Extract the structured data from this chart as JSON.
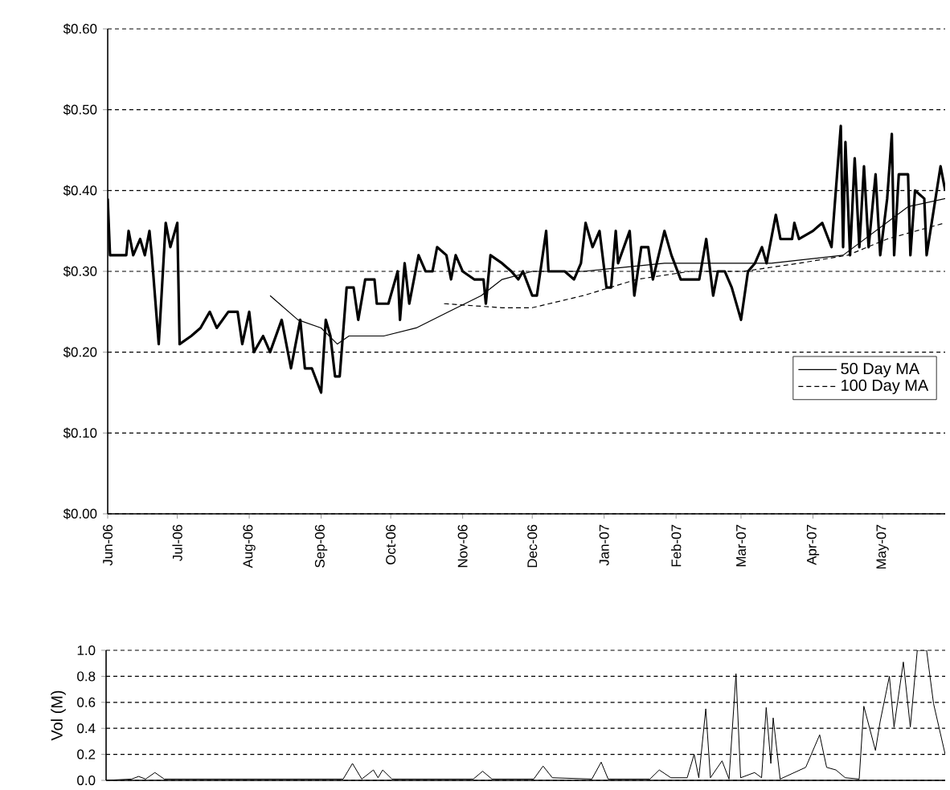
{
  "chart_data": [
    {
      "type": "line",
      "xlim": [
        "2006-06-01",
        "2007-05-28"
      ],
      "ylim": [
        0,
        0.6
      ],
      "yticks": [
        {
          "value": 0,
          "label": "$0.00"
        },
        {
          "value": 0.1,
          "label": "$0.10"
        },
        {
          "value": 0.2,
          "label": "$0.20"
        },
        {
          "value": 0.3,
          "label": "$0.30"
        },
        {
          "value": 0.4,
          "label": "$0.40"
        },
        {
          "value": 0.5,
          "label": "$0.50"
        },
        {
          "value": 0.6,
          "label": "$0.60"
        }
      ],
      "xticks": [
        {
          "value": "2006-06-01",
          "label": "Jun-06"
        },
        {
          "value": "2006-07-01",
          "label": "Jul-06"
        },
        {
          "value": "2006-08-01",
          "label": "Aug-06"
        },
        {
          "value": "2006-09-01",
          "label": "Sep-06"
        },
        {
          "value": "2006-10-01",
          "label": "Oct-06"
        },
        {
          "value": "2006-11-01",
          "label": "Nov-06"
        },
        {
          "value": "2006-12-01",
          "label": "Dec-06"
        },
        {
          "value": "2007-01-01",
          "label": "Jan-07"
        },
        {
          "value": "2007-02-01",
          "label": "Feb-07"
        },
        {
          "value": "2007-03-01",
          "label": "Mar-07"
        },
        {
          "value": "2007-04-01",
          "label": "Apr-07"
        },
        {
          "value": "2007-05-01",
          "label": "May-07"
        }
      ],
      "grid": "y",
      "legend": "right",
      "marker": "none",
      "series": [
        {
          "color": "#000000",
          "line_style": "solid",
          "x": [
            "2006-06-01",
            "2006-06-02",
            "2006-06-09",
            "2006-06-10",
            "2006-06-12",
            "2006-06-15",
            "2006-06-17",
            "2006-06-19",
            "2006-06-20",
            "2006-06-23",
            "2006-06-26",
            "2006-06-28",
            "2006-07-01",
            "2006-07-02",
            "2006-07-07",
            "2006-07-11",
            "2006-07-15",
            "2006-07-18",
            "2006-07-23",
            "2006-07-27",
            "2006-07-29",
            "2006-08-01",
            "2006-08-03",
            "2006-08-07",
            "2006-08-10",
            "2006-08-15",
            "2006-08-19",
            "2006-08-23",
            "2006-08-25",
            "2006-08-28",
            "2006-09-01",
            "2006-09-03",
            "2006-09-05",
            "2006-09-07",
            "2006-09-09",
            "2006-09-12",
            "2006-09-15",
            "2006-09-17",
            "2006-09-20",
            "2006-09-24",
            "2006-09-25",
            "2006-09-30",
            "2006-10-04",
            "2006-10-05",
            "2006-10-07",
            "2006-10-09",
            "2006-10-13",
            "2006-10-16",
            "2006-10-19",
            "2006-10-21",
            "2006-10-25",
            "2006-10-27",
            "2006-10-29",
            "2006-11-01",
            "2006-11-06",
            "2006-11-10",
            "2006-11-11",
            "2006-11-13",
            "2006-11-18",
            "2006-11-22",
            "2006-11-25",
            "2006-11-27",
            "2006-12-01",
            "2006-12-03",
            "2006-12-07",
            "2006-12-08",
            "2006-12-15",
            "2006-12-19",
            "2006-12-22",
            "2006-12-24",
            "2006-12-27",
            "2006-12-30",
            "2007-01-02",
            "2007-01-04",
            "2007-01-06",
            "2007-01-07",
            "2007-01-12",
            "2007-01-14",
            "2007-01-17",
            "2007-01-20",
            "2007-01-22",
            "2007-01-27",
            "2007-01-30",
            "2007-02-03",
            "2007-02-11",
            "2007-02-14",
            "2007-02-17",
            "2007-02-19",
            "2007-02-22",
            "2007-02-25",
            "2007-03-01",
            "2007-03-04",
            "2007-03-07",
            "2007-03-10",
            "2007-03-12",
            "2007-03-16",
            "2007-03-18",
            "2007-03-23",
            "2007-03-24",
            "2007-03-26",
            "2007-04-01",
            "2007-04-05",
            "2007-04-09",
            "2007-04-13",
            "2007-04-14",
            "2007-04-15",
            "2007-04-17",
            "2007-04-19",
            "2007-04-21",
            "2007-04-23",
            "2007-04-25",
            "2007-04-28",
            "2007-04-30",
            "2007-05-03",
            "2007-05-05",
            "2007-05-06",
            "2007-05-08",
            "2007-05-12",
            "2007-05-13",
            "2007-05-15",
            "2007-05-19",
            "2007-05-20",
            "2007-05-26",
            "2007-05-28"
          ],
          "values": [
            0.39,
            0.32,
            0.32,
            0.35,
            0.32,
            0.34,
            0.32,
            0.35,
            0.32,
            0.21,
            0.36,
            0.33,
            0.36,
            0.21,
            0.22,
            0.23,
            0.25,
            0.23,
            0.25,
            0.25,
            0.21,
            0.25,
            0.2,
            0.22,
            0.2,
            0.24,
            0.18,
            0.24,
            0.18,
            0.18,
            0.15,
            0.24,
            0.22,
            0.17,
            0.17,
            0.28,
            0.28,
            0.24,
            0.29,
            0.29,
            0.26,
            0.26,
            0.3,
            0.24,
            0.31,
            0.26,
            0.32,
            0.3,
            0.3,
            0.33,
            0.32,
            0.29,
            0.32,
            0.3,
            0.29,
            0.29,
            0.26,
            0.32,
            0.31,
            0.3,
            0.29,
            0.3,
            0.27,
            0.27,
            0.35,
            0.3,
            0.3,
            0.29,
            0.31,
            0.36,
            0.33,
            0.35,
            0.28,
            0.28,
            0.35,
            0.31,
            0.35,
            0.27,
            0.33,
            0.33,
            0.29,
            0.35,
            0.32,
            0.29,
            0.29,
            0.34,
            0.27,
            0.3,
            0.3,
            0.28,
            0.24,
            0.3,
            0.31,
            0.33,
            0.31,
            0.37,
            0.34,
            0.34,
            0.36,
            0.34,
            0.35,
            0.36,
            0.33,
            0.48,
            0.33,
            0.46,
            0.32,
            0.44,
            0.33,
            0.43,
            0.33,
            0.42,
            0.32,
            0.39,
            0.47,
            0.32,
            0.42,
            0.42,
            0.32,
            0.4,
            0.39,
            0.32,
            0.43,
            0.4
          ]
        },
        {
          "name": "50 Day MA",
          "color": "#000000",
          "line_style": "solid",
          "x": [
            "2006-08-10",
            "2006-08-22",
            "2006-09-01",
            "2006-09-08",
            "2006-09-13",
            "2006-09-28",
            "2006-10-12",
            "2006-10-26",
            "2006-11-09",
            "2006-11-18",
            "2006-12-01",
            "2006-12-23",
            "2007-01-27",
            "2007-02-19",
            "2007-03-14",
            "2007-04-14",
            "2007-05-12",
            "2007-05-28"
          ],
          "values": [
            0.27,
            0.24,
            0.23,
            0.21,
            0.22,
            0.22,
            0.23,
            0.25,
            0.27,
            0.29,
            0.3,
            0.3,
            0.31,
            0.31,
            0.31,
            0.32,
            0.38,
            0.39
          ]
        },
        {
          "name": "100 Day MA",
          "color": "#000000",
          "line_style": "dashed",
          "x": [
            "2006-10-24",
            "2006-11-18",
            "2006-12-01",
            "2006-12-23",
            "2007-01-15",
            "2007-02-07",
            "2007-03-02",
            "2007-03-26",
            "2007-04-16",
            "2007-05-03",
            "2007-05-28"
          ],
          "values": [
            0.26,
            0.255,
            0.255,
            0.27,
            0.29,
            0.3,
            0.3,
            0.31,
            0.32,
            0.34,
            0.36
          ]
        }
      ]
    },
    {
      "type": "line",
      "ylabel": "Vol (M)",
      "xlim": [
        "2006-06-01",
        "2007-05-28"
      ],
      "ylim": [
        0,
        1
      ],
      "yticks": [
        {
          "value": 0,
          "label": "0.0"
        },
        {
          "value": 0.2,
          "label": "0.2"
        },
        {
          "value": 0.4,
          "label": "0.4"
        },
        {
          "value": 0.6,
          "label": "0.6"
        },
        {
          "value": 0.8,
          "label": "0.8"
        },
        {
          "value": 1,
          "label": "1.0"
        }
      ],
      "grid": "y",
      "tick_labels": "y",
      "marker": "none",
      "series": [
        {
          "color": "#000000",
          "line_style": "solid",
          "x": [
            "2006-06-01",
            "2006-06-12",
            "2006-06-15",
            "2006-06-18",
            "2006-06-22",
            "2006-06-26",
            "2006-09-11",
            "2006-09-15",
            "2006-09-19",
            "2006-09-24",
            "2006-09-26",
            "2006-09-28",
            "2006-10-02",
            "2006-11-06",
            "2006-11-10",
            "2006-11-14",
            "2006-12-02",
            "2006-12-06",
            "2006-12-10",
            "2006-12-27",
            "2006-12-31",
            "2007-01-03",
            "2007-01-21",
            "2007-01-25",
            "2007-01-30",
            "2007-02-06",
            "2007-02-09",
            "2007-02-11",
            "2007-02-14",
            "2007-02-16",
            "2007-02-21",
            "2007-02-24",
            "2007-02-27",
            "2007-03-01",
            "2007-03-07",
            "2007-03-10",
            "2007-03-12",
            "2007-03-14",
            "2007-03-15",
            "2007-03-18",
            "2007-03-29",
            "2007-04-04",
            "2007-04-07",
            "2007-04-11",
            "2007-04-15",
            "2007-04-21",
            "2007-04-23",
            "2007-04-28",
            "2007-04-30",
            "2007-05-04",
            "2007-05-06",
            "2007-05-10",
            "2007-05-13",
            "2007-05-16",
            "2007-05-20",
            "2007-05-23",
            "2007-05-28"
          ],
          "values": [
            0,
            0.01,
            0.03,
            0.01,
            0.06,
            0.01,
            0.01,
            0.13,
            0.01,
            0.08,
            0.02,
            0.08,
            0.01,
            0.01,
            0.07,
            0.01,
            0.01,
            0.11,
            0.02,
            0.01,
            0.14,
            0.01,
            0.01,
            0.08,
            0.02,
            0.02,
            0.2,
            0.02,
            0.55,
            0.02,
            0.15,
            0.01,
            0.82,
            0.02,
            0.06,
            0.02,
            0.56,
            0.13,
            0.48,
            0.01,
            0.1,
            0.35,
            0.1,
            0.08,
            0.02,
            0.01,
            0.57,
            0.23,
            0.45,
            0.8,
            0.41,
            0.91,
            0.41,
            1.0,
            1.0,
            0.59,
            0.2
          ]
        }
      ]
    }
  ]
}
